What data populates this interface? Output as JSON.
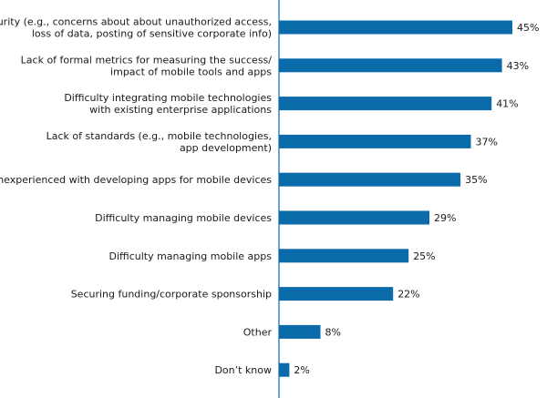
{
  "chart_data": {
    "type": "bar",
    "orientation": "horizontal",
    "categories": [
      [
        "Security (e.g., concerns about about unauthorized access,",
        "loss of data, posting of sensitive corporate info)"
      ],
      [
        "Lack of formal metrics for measuring the success/",
        "impact of mobile tools and apps"
      ],
      [
        "Difficulty integrating mobile technologies",
        "with existing enterprise applications"
      ],
      [
        "Lack of standards (e.g., mobile technologies,",
        "app development)"
      ],
      [
        "Inexperienced with developing apps for mobile devices"
      ],
      [
        "Difficulty managing mobile devices"
      ],
      [
        "Difficulty managing mobile apps"
      ],
      [
        "Securing funding/corporate sponsorship"
      ],
      [
        "Other"
      ],
      [
        "Don’t know"
      ]
    ],
    "values": [
      45,
      43,
      41,
      37,
      35,
      29,
      25,
      22,
      8,
      2
    ],
    "value_labels": [
      "45%",
      "43%",
      "41%",
      "37%",
      "35%",
      "29%",
      "25%",
      "22%",
      "8%",
      "2%"
    ],
    "bar_color": "#0a6aaa",
    "axis_color": "#0a6aaa",
    "title": "",
    "xlabel": "",
    "ylabel": "",
    "xlim": [
      0,
      45
    ],
    "grid": false,
    "legend": "none"
  }
}
